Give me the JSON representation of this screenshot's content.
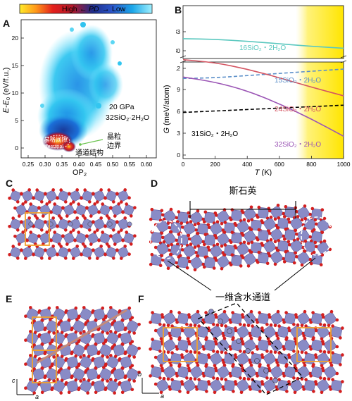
{
  "panels": {
    "A": {
      "label": "A",
      "colorbar": {
        "text_high": "High",
        "text_arrow_left": "←",
        "text_pd": "PD",
        "text_arrow_right": "→",
        "text_low": "Low"
      },
      "xlabel": "OP",
      "xlabel_sub": "2",
      "ylabel": "E-E",
      "ylabel_sub": "0",
      "ylabel_unit": " (eV/f.u.)",
      "xticks": [
        "0.25",
        "0.30",
        "0.35",
        "0.40",
        "0.45",
        "0.50",
        "0.55",
        "0.60"
      ],
      "yticks": [
        "0",
        "5",
        "10",
        "15",
        "20"
      ],
      "annot_pressure": "20 GPa",
      "annot_formula": "32SiO",
      "annot_formula_sub": "2",
      "annot_formula_rest": "·2H",
      "annot_formula_sub2": "2",
      "annot_formula_end": "O",
      "annot_interstitial_cn": "晶格间隙",
      "annot_interstitial_en": "Interstitial",
      "annot_grain1": "晶粒",
      "annot_grain2": "边界",
      "annot_channel": "通道结构"
    },
    "B": {
      "label": "B",
      "xlabel": "T",
      "xlabel_unit": " (K)",
      "ylabel": "G",
      "ylabel_unit": " (meV/atom)",
      "xticks": [
        "0",
        "200",
        "400",
        "600",
        "800",
        "1000"
      ],
      "yticks_top": [
        "30",
        "33"
      ],
      "yticks_bottom": [
        "0",
        "3",
        "6",
        "9",
        "12"
      ],
      "series_labels": {
        "s16": "16SiO₂・2H₂O",
        "s15": "15SiO₂・2H₂O",
        "s24": "24SiO₂・2H₂O",
        "s31": "31SiO₂・2H₂O",
        "s32": "32SiO₂・2H₂O"
      }
    },
    "C": {
      "label": "C"
    },
    "D": {
      "label": "D",
      "top_label": "斯石英",
      "bottom_label": "一维含水通道"
    },
    "E": {
      "label": "E",
      "axis_c": "c",
      "axis_a": "a"
    },
    "F": {
      "label": "F",
      "axis_b": "b",
      "axis_a": "a"
    }
  },
  "colors": {
    "s16": "#5bc8bf",
    "s15": "#5b8fc9",
    "s24": "#d45562",
    "s31": "#000000",
    "s32": "#9b55b5",
    "polyhedra": "#7d7fc0",
    "oxygen": "#d31f1f",
    "orange": "#f0a030"
  },
  "chart_data": [
    {
      "type": "line",
      "xlabel": "T (K)",
      "ylabel": "G (meV/atom)",
      "xlim": [
        0,
        1000
      ],
      "ylim_bottom": [
        0,
        13.5
      ],
      "ylim_top": [
        29.5,
        33.5
      ],
      "series": [
        {
          "name": "16SiO₂・2H₂O",
          "x": [
            0,
            200,
            400,
            600,
            800,
            1000
          ],
          "y": [
            31.9,
            31.8,
            31.5,
            31.1,
            30.7,
            30.4
          ],
          "style": "solid"
        },
        {
          "name": "15SiO₂・2H₂O",
          "x": [
            0,
            200,
            400,
            600,
            800,
            1000
          ],
          "y": [
            10.6,
            10.7,
            11.0,
            11.3,
            11.6,
            11.9
          ],
          "style": "dashed"
        },
        {
          "name": "24SiO₂・2H₂O",
          "x": [
            0,
            200,
            400,
            600,
            800,
            1000
          ],
          "y": [
            13.2,
            12.8,
            11.9,
            10.7,
            9.4,
            8.2
          ],
          "style": "solid"
        },
        {
          "name": "31SiO₂・2H₂O",
          "x": [
            0,
            200,
            400,
            600,
            800,
            1000
          ],
          "y": [
            5.9,
            6.1,
            6.3,
            6.5,
            6.7,
            6.9
          ],
          "style": "dashed"
        },
        {
          "name": "32SiO₂・2H₂O",
          "x": [
            0,
            200,
            400,
            600,
            800,
            1000
          ],
          "y": [
            10.8,
            10.1,
            8.9,
            7.1,
            5.0,
            2.6
          ],
          "style": "solid"
        }
      ]
    }
  ]
}
